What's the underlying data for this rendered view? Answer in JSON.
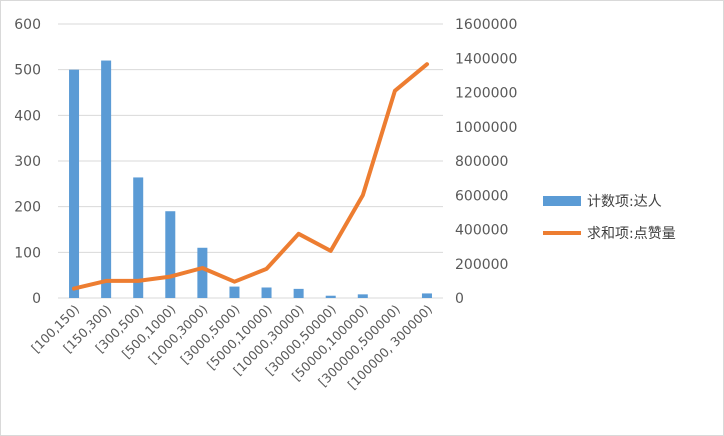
{
  "chart_data": {
    "type": "bar",
    "categories": [
      "[100,150)",
      "[150,300)",
      "[300,500)",
      "[500,1000)",
      "[1000,3000)",
      "[3000,5000)",
      "[5000,10000)",
      "[10000,30000)",
      "[30000,50000)",
      "[50000,100000)",
      "[300000,500000)",
      "[100000, 300000)"
    ],
    "series": [
      {
        "name": "计数项:达人",
        "type": "bar",
        "axis": "left",
        "color": "#5b9bd5",
        "values": [
          500,
          520,
          264,
          190,
          110,
          25,
          23,
          20,
          5,
          8,
          0,
          10
        ]
      },
      {
        "name": "求和项:点赞量",
        "type": "line",
        "axis": "right",
        "color": "#ed7d31",
        "values": [
          55000,
          100000,
          100000,
          125000,
          175000,
          95000,
          170000,
          375000,
          275000,
          600000,
          1210000,
          1365000
        ]
      }
    ],
    "y_left": {
      "ylim": [
        0,
        600
      ],
      "ticks": [
        "0",
        "100",
        "200",
        "300",
        "400",
        "500",
        "600"
      ]
    },
    "y_right": {
      "ylim": [
        0,
        1600000
      ],
      "ticks": [
        "0",
        "200000",
        "400000",
        "600000",
        "800000",
        "1000000",
        "1200000",
        "1400000",
        "1600000"
      ]
    },
    "grid": true,
    "legend_position": "right"
  }
}
